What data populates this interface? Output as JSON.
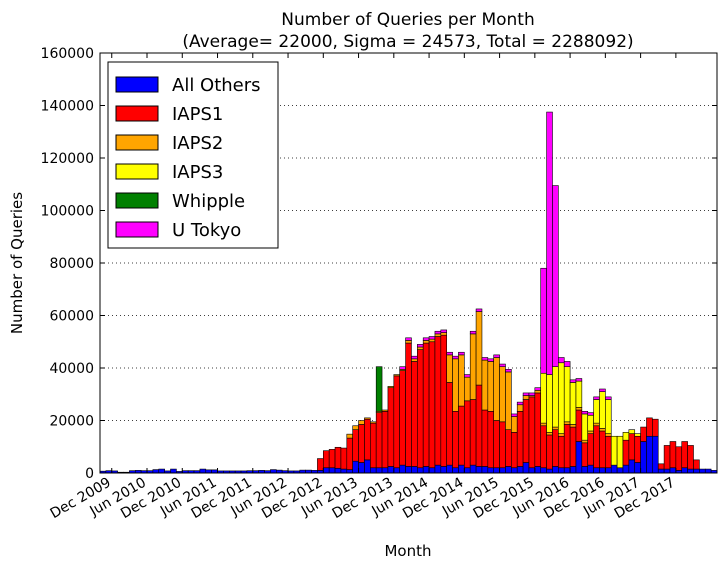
{
  "chart_data": {
    "type": "bar",
    "stacked": true,
    "title": "Number of Queries per Month",
    "subtitle": "(Average= 22000, Sigma = 24573, Total = 2288092)",
    "xlabel": "Month",
    "ylabel": "Number of Queries",
    "ylim": [
      0,
      160000
    ],
    "yticks": [
      0,
      20000,
      40000,
      60000,
      80000,
      100000,
      120000,
      140000,
      160000
    ],
    "xticks": [
      {
        "label": "Dec 2009",
        "index": 2
      },
      {
        "label": "Jun 2010",
        "index": 8
      },
      {
        "label": "Dec 2010",
        "index": 14
      },
      {
        "label": "Jun 2011",
        "index": 20
      },
      {
        "label": "Dec 2011",
        "index": 26
      },
      {
        "label": "Jun 2012",
        "index": 32
      },
      {
        "label": "Dec 2012",
        "index": 38
      },
      {
        "label": "Jun 2013",
        "index": 44
      },
      {
        "label": "Dec 2013",
        "index": 50
      },
      {
        "label": "Jun 2014",
        "index": 56
      },
      {
        "label": "Dec 2014",
        "index": 62
      },
      {
        "label": "Jun 2015",
        "index": 68
      },
      {
        "label": "Dec 2015",
        "index": 74
      },
      {
        "label": "Jun 2016",
        "index": 80
      },
      {
        "label": "Dec 2016",
        "index": 86
      },
      {
        "label": "Jun 2017",
        "index": 92
      },
      {
        "label": "Dec 2017",
        "index": 98
      }
    ],
    "grid": "horizontal dotted",
    "legend_position": "top-left",
    "series": [
      {
        "name": "All Others",
        "color": "#0000ff",
        "values": [
          700,
          900,
          800,
          300,
          300,
          900,
          1000,
          900,
          900,
          1300,
          1500,
          800,
          1500,
          600,
          900,
          900,
          900,
          1500,
          1200,
          1200,
          800,
          800,
          800,
          800,
          800,
          900,
          900,
          1000,
          900,
          1300,
          1100,
          900,
          800,
          800,
          1100,
          1100,
          1000,
          1000,
          2000,
          2000,
          1800,
          1500,
          1300,
          4500,
          4000,
          5000,
          2000,
          2000,
          2000,
          2500,
          2000,
          3000,
          2500,
          2500,
          2000,
          2500,
          2000,
          3000,
          2500,
          3000,
          2000,
          3000,
          2000,
          3000,
          2500,
          2500,
          2000,
          2000,
          2000,
          2500,
          2000,
          2500,
          4000,
          2000,
          2500,
          2000,
          1500,
          2500,
          2000,
          2000,
          2500,
          12000,
          2500,
          3000,
          2000,
          2000,
          2000,
          3000,
          2000,
          3000,
          5000,
          4000,
          12000,
          14000,
          14000,
          1500,
          1500,
          2000,
          1000,
          2000,
          1500,
          1500,
          1500,
          1500,
          1000
        ]
      },
      {
        "name": "IAPS1",
        "color": "#ff0000",
        "values": [
          0,
          0,
          0,
          0,
          0,
          0,
          0,
          0,
          0,
          0,
          0,
          0,
          0,
          0,
          0,
          0,
          0,
          0,
          0,
          0,
          0,
          0,
          0,
          0,
          0,
          0,
          0,
          0,
          0,
          0,
          0,
          0,
          0,
          0,
          0,
          0,
          0,
          4500,
          6500,
          7000,
          8000,
          8000,
          12000,
          12000,
          14500,
          15500,
          17000,
          21000,
          21500,
          30000,
          35000,
          36000,
          47000,
          40000,
          45000,
          47000,
          48000,
          49000,
          50000,
          31500,
          21500,
          22500,
          25500,
          25000,
          31000,
          21500,
          21500,
          18000,
          17500,
          14000,
          13500,
          21000,
          24000,
          27000,
          28000,
          16000,
          13000,
          14000,
          12000,
          16500,
          15000,
          12000,
          9000,
          12000,
          16000,
          14000,
          12000,
          0,
          0,
          9500,
          10000,
          10000,
          5500,
          7000,
          6500,
          2000,
          9000,
          10000,
          9000,
          10000,
          9000,
          3500
        ]
      },
      {
        "name": "IAPS2",
        "color": "#ffa500",
        "values": [
          0,
          0,
          0,
          0,
          0,
          0,
          0,
          0,
          0,
          0,
          0,
          0,
          0,
          0,
          0,
          0,
          0,
          0,
          0,
          0,
          0,
          0,
          0,
          0,
          0,
          0,
          0,
          0,
          0,
          0,
          0,
          0,
          0,
          0,
          0,
          0,
          0,
          0,
          0,
          0,
          0,
          0,
          1500,
          1500,
          1500,
          500,
          500,
          500,
          500,
          500,
          500,
          500,
          1000,
          1000,
          1000,
          1000,
          1000,
          1000,
          1000,
          10500,
          20000,
          19500,
          9000,
          25000,
          28000,
          19000,
          19000,
          24000,
          21000,
          22000,
          6000,
          2500,
          1500,
          500,
          1000,
          1000,
          1000,
          1000,
          1000,
          1000,
          1000,
          1000,
          1000,
          1000,
          1000,
          1000,
          1000,
          0,
          0,
          0,
          0,
          0,
          0,
          0,
          0,
          0,
          0,
          0,
          0,
          0,
          0,
          0
        ]
      },
      {
        "name": "IAPS3",
        "color": "#ffff00",
        "values": [
          0,
          0,
          0,
          0,
          0,
          0,
          0,
          0,
          0,
          0,
          0,
          0,
          0,
          0,
          0,
          0,
          0,
          0,
          0,
          0,
          0,
          0,
          0,
          0,
          0,
          0,
          0,
          0,
          0,
          0,
          0,
          0,
          0,
          0,
          0,
          0,
          0,
          0,
          0,
          0,
          0,
          0,
          0,
          0,
          0,
          0,
          0,
          0,
          0,
          0,
          0,
          0,
          0,
          0,
          0,
          0,
          0,
          0,
          0,
          0,
          0,
          0,
          0,
          0,
          0,
          0,
          0,
          0,
          0,
          0,
          0,
          0,
          0,
          0,
          0,
          19000,
          22000,
          23000,
          27000,
          21000,
          16000,
          10000,
          10000,
          6000,
          9000,
          14000,
          13000,
          11000,
          12000,
          3000,
          1500,
          1000,
          0,
          0,
          0,
          0,
          0,
          0,
          0,
          0,
          0,
          0,
          0,
          0,
          0
        ]
      },
      {
        "name": "Whipple",
        "color": "#008000",
        "values": [
          0,
          0,
          0,
          0,
          0,
          0,
          0,
          0,
          0,
          0,
          0,
          0,
          0,
          0,
          0,
          0,
          0,
          0,
          0,
          0,
          0,
          0,
          0,
          0,
          0,
          0,
          0,
          0,
          0,
          0,
          0,
          0,
          0,
          0,
          0,
          0,
          0,
          0,
          0,
          0,
          0,
          0,
          0,
          0,
          0,
          0,
          0,
          17000,
          0,
          0,
          0,
          0,
          0,
          0,
          0,
          0,
          0,
          0,
          0,
          0,
          0,
          0,
          0,
          0,
          0,
          0,
          0,
          0,
          0,
          0,
          0,
          0,
          0,
          0,
          0,
          0,
          0,
          0,
          0,
          0,
          0,
          0,
          0,
          0,
          0,
          0,
          0,
          0,
          0,
          0,
          0,
          0,
          0,
          0,
          0,
          0,
          0,
          0,
          0,
          0,
          0,
          0,
          0,
          0,
          0
        ]
      },
      {
        "name": "U Tokyo",
        "color": "#ff00ff",
        "values": [
          0,
          0,
          0,
          0,
          0,
          0,
          0,
          0,
          0,
          0,
          0,
          0,
          0,
          0,
          0,
          0,
          0,
          0,
          0,
          0,
          0,
          0,
          0,
          0,
          0,
          0,
          0,
          0,
          0,
          0,
          0,
          0,
          0,
          0,
          0,
          0,
          0,
          0,
          0,
          0,
          0,
          0,
          0,
          0,
          0,
          0,
          0,
          0,
          0,
          0,
          0,
          1000,
          1000,
          1000,
          1000,
          1000,
          1000,
          1000,
          1000,
          1000,
          1000,
          1000,
          1000,
          1000,
          1000,
          1000,
          1000,
          1000,
          1000,
          1000,
          1000,
          1000,
          1000,
          1000,
          1000,
          40000,
          100000,
          69000,
          2000,
          2000,
          1000,
          1000,
          1000,
          1000,
          1000,
          1000,
          1000,
          0,
          0,
          0,
          0,
          0,
          0,
          0,
          0,
          0,
          0,
          0,
          0,
          0,
          0,
          0
        ]
      }
    ]
  }
}
